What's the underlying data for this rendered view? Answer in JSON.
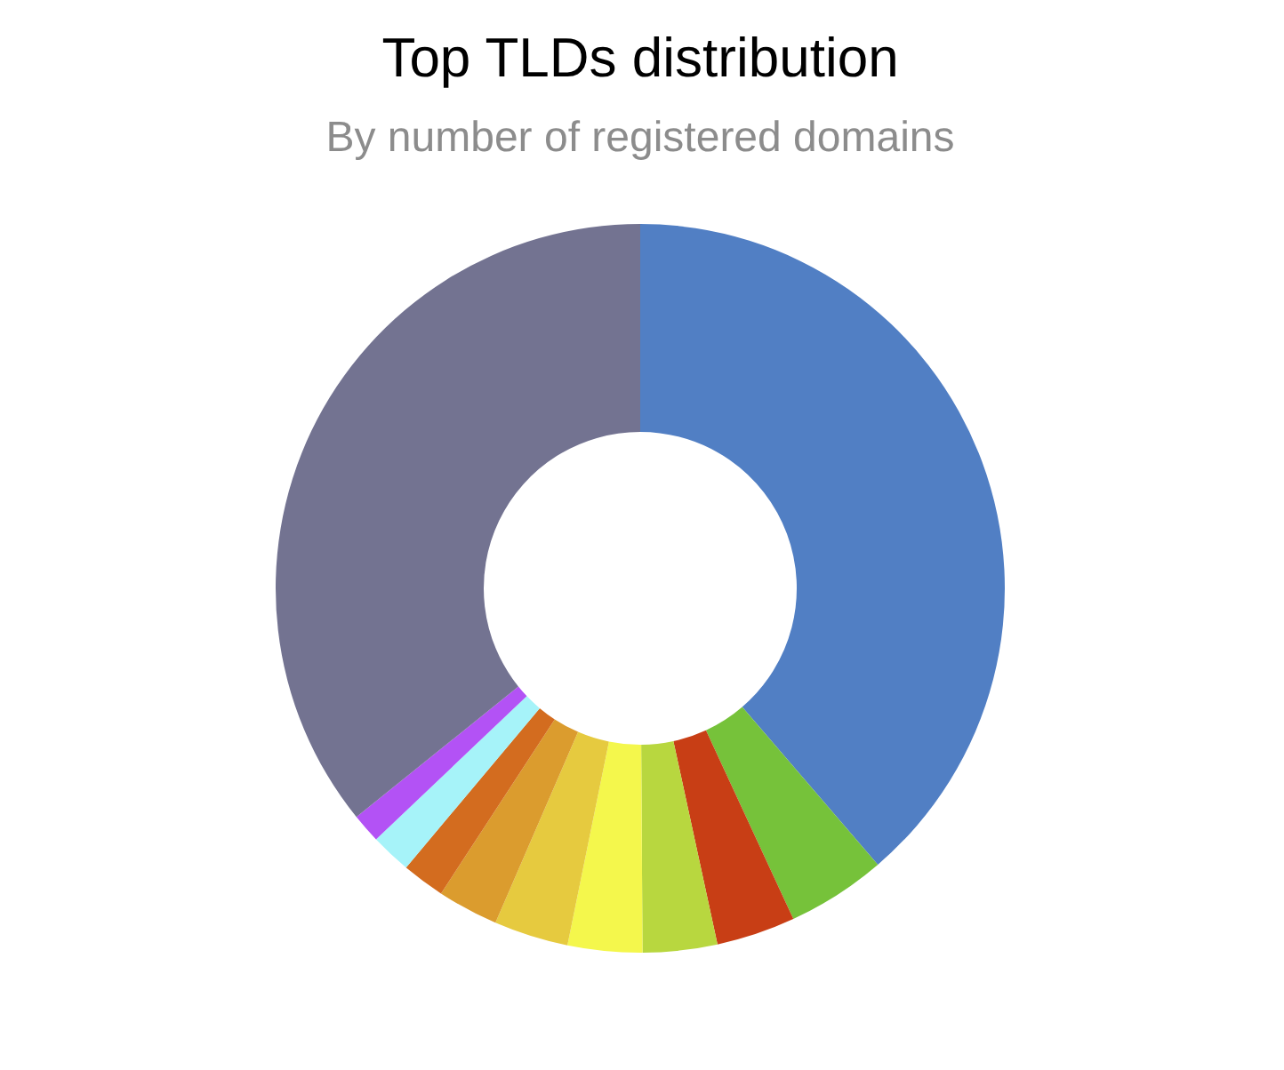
{
  "chart_data": {
    "type": "donut",
    "title": "Top TLDs distribution",
    "subtitle": "By number of registered domains",
    "categories": [
      null,
      null,
      null,
      null,
      null,
      null,
      null,
      null,
      null,
      null,
      null
    ],
    "values": [
      38.7,
      4.4,
      3.5,
      3.3,
      3.3,
      3.3,
      2.7,
      1.9,
      1.8,
      1.3,
      35.8
    ],
    "colors": [
      "#517fc4",
      "#76c23a",
      "#c83e15",
      "#b8d73f",
      "#f4f74c",
      "#e6ca3f",
      "#db9c2e",
      "#d36c1f",
      "#a6f3f9",
      "#b352f5",
      "#737391"
    ],
    "legend": false
  }
}
